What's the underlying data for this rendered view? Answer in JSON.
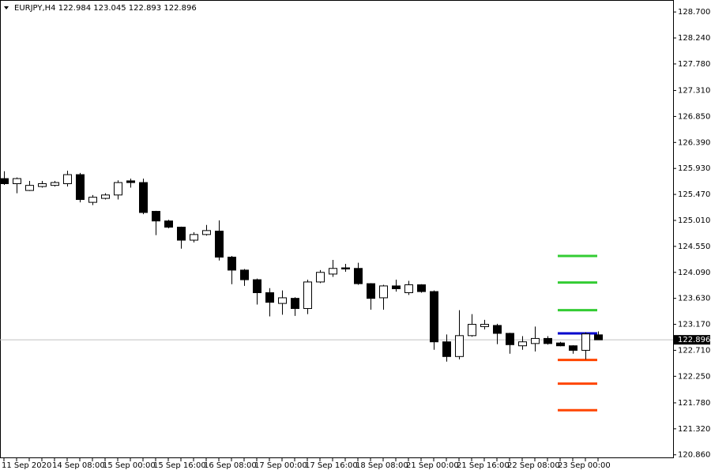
{
  "chart_data": {
    "type": "candlestick",
    "symbol": "EURJPY,H4",
    "categories": [
      "11 Sep 2020",
      null,
      null,
      null,
      "14 Sep 08:00",
      null,
      null,
      null,
      "15 Sep 00:00",
      null,
      null,
      null,
      "15 Sep 16:00",
      null,
      null,
      null,
      "16 Sep 08:00",
      null,
      null,
      null,
      "17 Sep 00:00",
      null,
      null,
      null,
      "17 Sep 16:00",
      null,
      null,
      null,
      "18 Sep 08:00",
      null,
      null,
      null,
      "21 Sep 00:00",
      null,
      null,
      null,
      "21 Sep 16:00",
      null,
      null,
      null,
      "22 Sep 08:00",
      null,
      null,
      null,
      "23 Sep 00:00",
      null,
      null,
      null
    ],
    "open": [
      125.75,
      125.66,
      125.54,
      125.61,
      125.63,
      125.66,
      125.82,
      125.33,
      125.4,
      125.46,
      125.71,
      125.68,
      125.17,
      125.0,
      124.89,
      124.66,
      124.76,
      124.82,
      124.36,
      124.13,
      123.96,
      123.73,
      123.54,
      123.63,
      123.45,
      123.92,
      124.06,
      124.17,
      124.16,
      123.89,
      123.64,
      123.85,
      123.73,
      123.87,
      123.75,
      122.86,
      122.6,
      122.97,
      123.13,
      123.15,
      123.01,
      122.79,
      122.83,
      122.92,
      122.84,
      122.79,
      122.71,
      122.984
    ],
    "high": [
      125.88,
      125.77,
      125.71,
      125.71,
      125.71,
      125.89,
      125.85,
      125.46,
      125.49,
      125.72,
      125.75,
      125.75,
      125.18,
      125.02,
      124.9,
      124.8,
      124.93,
      125.01,
      124.38,
      124.15,
      123.98,
      123.81,
      123.77,
      123.65,
      123.96,
      124.13,
      124.31,
      124.24,
      124.26,
      123.9,
      123.87,
      123.96,
      123.94,
      123.88,
      123.77,
      122.99,
      123.42,
      123.35,
      123.25,
      123.18,
      123.02,
      122.96,
      123.13,
      122.96,
      122.86,
      122.8,
      123.03,
      123.045
    ],
    "low": [
      125.64,
      125.49,
      125.53,
      125.59,
      125.61,
      125.61,
      125.33,
      125.28,
      125.38,
      125.38,
      125.59,
      125.12,
      124.75,
      124.87,
      124.51,
      124.62,
      124.74,
      124.3,
      123.88,
      123.85,
      123.52,
      123.31,
      123.34,
      123.32,
      123.35,
      123.9,
      124.01,
      124.1,
      123.87,
      123.43,
      123.43,
      123.75,
      123.69,
      123.73,
      122.72,
      122.51,
      122.55,
      122.95,
      123.08,
      122.82,
      122.65,
      122.72,
      122.69,
      122.81,
      122.78,
      122.65,
      122.55,
      122.893
    ],
    "close": [
      125.66,
      125.75,
      125.63,
      125.66,
      125.68,
      125.82,
      125.38,
      125.42,
      125.46,
      125.68,
      125.68,
      125.15,
      125.0,
      124.89,
      124.66,
      124.76,
      124.83,
      124.36,
      124.13,
      123.96,
      123.73,
      123.56,
      123.64,
      123.45,
      123.92,
      124.09,
      124.16,
      124.15,
      123.89,
      123.63,
      123.85,
      123.8,
      123.87,
      123.75,
      122.86,
      122.6,
      122.97,
      123.17,
      123.17,
      123.01,
      122.81,
      122.86,
      122.92,
      122.83,
      122.79,
      122.71,
      123.0,
      122.896
    ],
    "up_color": "#ffffff",
    "down_color": "#000000",
    "levels": [
      {
        "value": 124.38,
        "color": "#33cc33"
      },
      {
        "value": 123.91,
        "color": "#33cc33"
      },
      {
        "value": 123.42,
        "color": "#33cc33"
      },
      {
        "value": 123.01,
        "color": "#0000cc"
      },
      {
        "value": 122.54,
        "color": "#ff4500"
      },
      {
        "value": 122.12,
        "color": "#ff4500"
      },
      {
        "value": 121.65,
        "color": "#ff4500"
      }
    ],
    "ylim": [
      120.8,
      128.87
    ],
    "yticks": [
      {
        "value": 120.86,
        "label": "120.860"
      },
      {
        "value": 121.32,
        "label": "121.320"
      },
      {
        "value": 121.78,
        "label": "121.780"
      },
      {
        "value": 122.25,
        "label": "122.250"
      },
      {
        "value": 122.71,
        "label": "122.710"
      },
      {
        "value": 123.17,
        "label": "123.170"
      },
      {
        "value": 123.63,
        "label": "123.630"
      },
      {
        "value": 124.09,
        "label": "124.090"
      },
      {
        "value": 124.55,
        "label": "124.550"
      },
      {
        "value": 125.01,
        "label": "125.010"
      },
      {
        "value": 125.47,
        "label": "125.470"
      },
      {
        "value": 125.93,
        "label": "125.930"
      },
      {
        "value": 126.39,
        "label": "126.390"
      },
      {
        "value": 126.85,
        "label": "126.850"
      },
      {
        "value": 127.31,
        "label": "127.310"
      },
      {
        "value": 127.78,
        "label": "127.780"
      },
      {
        "value": 128.24,
        "label": "128.240"
      },
      {
        "value": 128.7,
        "label": "128.700"
      }
    ]
  }
}
